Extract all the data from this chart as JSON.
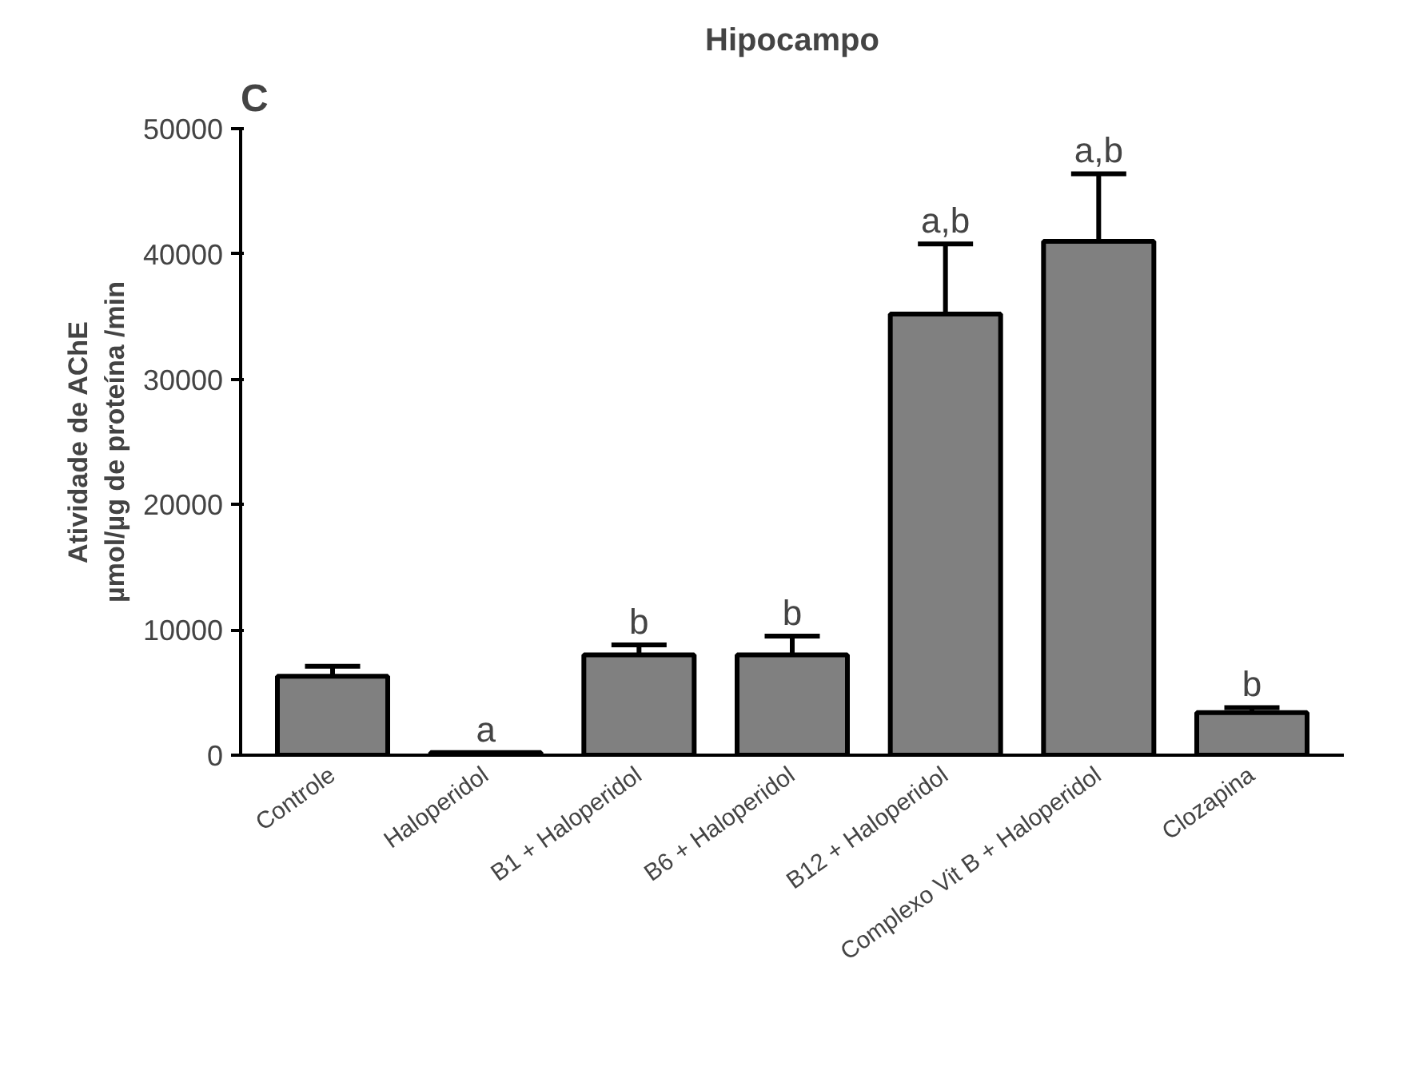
{
  "chart_data": {
    "type": "bar",
    "title": "Hipocampo",
    "ylabel": "Atividade de AChE\nµmol/µg de proteína /min",
    "categories": [
      "Controle",
      "Haloperidol",
      "B1 + Haloperidol",
      "B6 + Haloperidol",
      "B12 + Haloperidol",
      "Complexo Vit B + Haloperidol",
      "Clozapina"
    ],
    "values": [
      6300,
      200,
      8000,
      8000,
      35200,
      41000,
      3400
    ],
    "errors": [
      800,
      null,
      800,
      1500,
      5600,
      5400,
      400
    ],
    "color": "#808080",
    "ylim": [
      0,
      50000
    ],
    "yticks": [
      0,
      10000,
      20000,
      30000,
      40000,
      50000
    ],
    "grid": false,
    "annotations": [
      "C",
      {
        "text": "a",
        "x": "Haloperidol",
        "y": 200
      },
      {
        "text": "b",
        "x": "B1 + Haloperidol",
        "y": 8800
      },
      {
        "text": "b",
        "x": "B6 + Haloperidol",
        "y": 9500
      },
      {
        "text": "a,b",
        "x": "B12 + Haloperidol",
        "y": 40800
      },
      {
        "text": "a,b",
        "x": "Complexo Vit B + Haloperidol",
        "y": 46400
      },
      {
        "text": "b",
        "x": "Clozapina",
        "y": 3800
      }
    ]
  }
}
